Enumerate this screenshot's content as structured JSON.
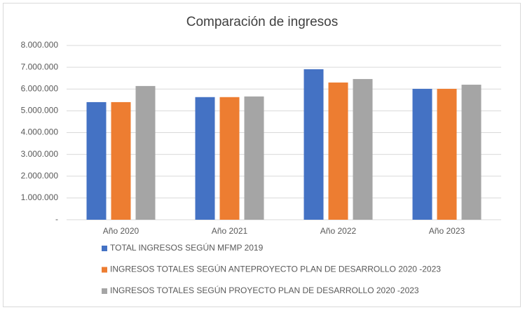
{
  "chart_data": {
    "type": "bar",
    "title": "Comparación de ingresos",
    "categories": [
      "Año 2020",
      "Año 2021",
      "Año 2022",
      "Año 2023"
    ],
    "series": [
      {
        "name": "TOTAL INGRESOS SEGÚN MFMP 2019",
        "color": "#4472c4",
        "values": [
          5400000,
          5630000,
          6910000,
          6010000
        ]
      },
      {
        "name": "INGRESOS TOTALES SEGÚN ANTEPROYECTO PLAN DE DESARROLLO 2020 -2023",
        "color": "#ed7d31",
        "values": [
          5400000,
          5630000,
          6300000,
          6010000
        ]
      },
      {
        "name": "INGRESOS TOTALES SEGÚN PROYECTO PLAN DE DESARROLLO 2020 -2023",
        "color": "#a5a5a5",
        "values": [
          6140000,
          5660000,
          6460000,
          6200000
        ]
      }
    ],
    "ylim": [
      0,
      8000000
    ],
    "yticks": [
      {
        "value": 0,
        "label": "-"
      },
      {
        "value": 1000000,
        "label": "1.000.000"
      },
      {
        "value": 2000000,
        "label": "2.000.000"
      },
      {
        "value": 3000000,
        "label": "3.000.000"
      },
      {
        "value": 4000000,
        "label": "4.000.000"
      },
      {
        "value": 5000000,
        "label": "5.000.000"
      },
      {
        "value": 6000000,
        "label": "6.000.000"
      },
      {
        "value": 7000000,
        "label": "7.000.000"
      },
      {
        "value": 8000000,
        "label": "8.000.000"
      }
    ],
    "grid": true,
    "legend": "bottom"
  }
}
